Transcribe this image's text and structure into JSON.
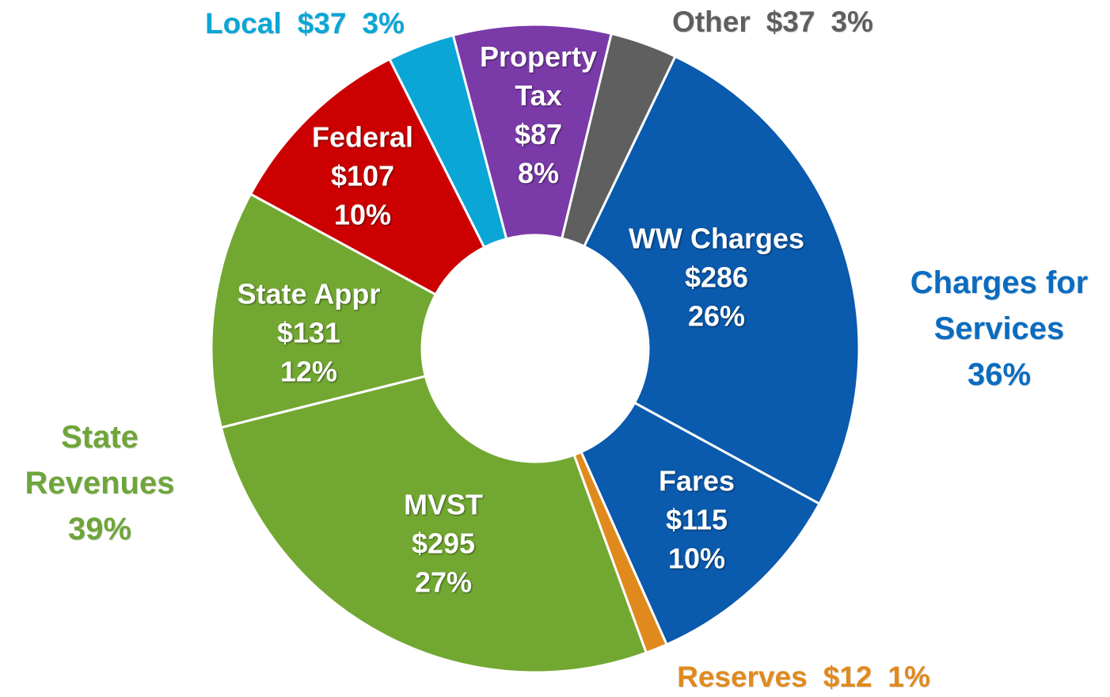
{
  "chart_data": {
    "type": "pie",
    "donut": true,
    "categories": [
      "Other",
      "WW Charges",
      "Fares",
      "Reserves",
      "MVST",
      "State Appr",
      "Federal",
      "Local",
      "Property Tax"
    ],
    "values": [
      37,
      286,
      115,
      12,
      295,
      131,
      107,
      37,
      87
    ],
    "value_labels": [
      "$37",
      "$286",
      "$115",
      "$12",
      "$295",
      "$131",
      "$107",
      "$37",
      "$87"
    ],
    "shares": [
      3,
      26,
      10,
      1,
      27,
      12,
      10,
      3,
      8
    ],
    "share_labels": [
      "3%",
      "26%",
      "10%",
      "1%",
      "27%",
      "12%",
      "10%",
      "3%",
      "8%"
    ],
    "colors": [
      "#5f5f5f",
      "#0a5aad",
      "#0a5aad",
      "#e08a1e",
      "#72a832",
      "#72a832",
      "#cc0000",
      "#0aa6d6",
      "#7a3aa8"
    ],
    "groups": [
      {
        "name": "Charges for Services",
        "share": 36,
        "share_label": "36%",
        "color": "#0a6cc0"
      },
      {
        "name": "State Revenues",
        "share": 39,
        "share_label": "39%",
        "color": "#6fa53a"
      }
    ]
  }
}
